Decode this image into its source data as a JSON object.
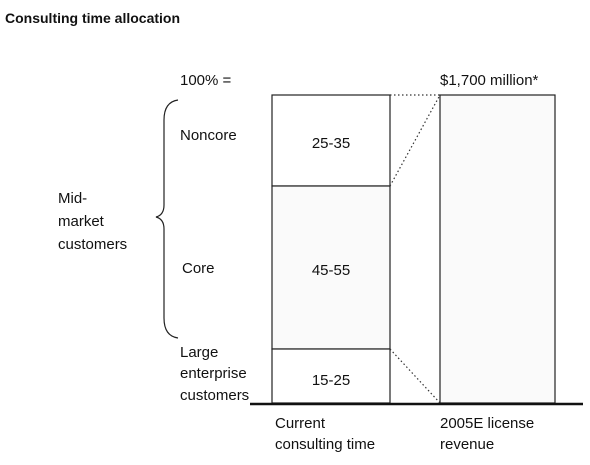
{
  "title": "Consulting time allocation",
  "total_label": "100% =",
  "total_value": "$1,700 million*",
  "group_label": [
    "Mid-",
    "market",
    "customers"
  ],
  "segments": [
    {
      "label": [
        "Noncore"
      ],
      "value": "25-35"
    },
    {
      "label": [
        "Core"
      ],
      "value": "45-55"
    },
    {
      "label": [
        "Large",
        "enterprise",
        "customers"
      ],
      "value": "15-25"
    }
  ],
  "columns": [
    [
      "Current",
      "consulting time"
    ],
    [
      "2005E license",
      "revenue"
    ]
  ]
}
